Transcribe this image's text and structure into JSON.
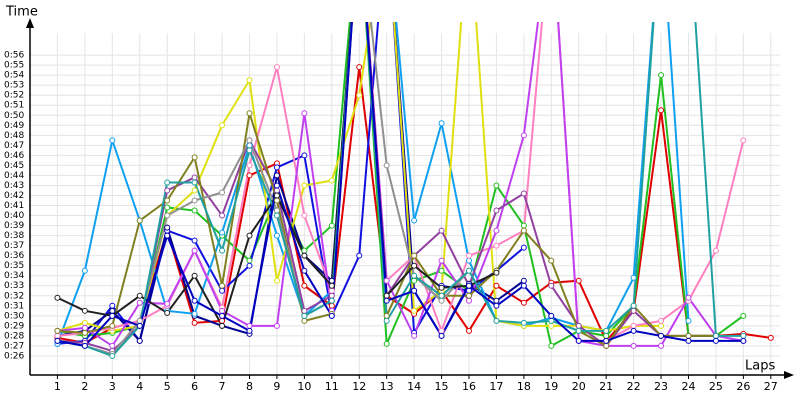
{
  "chart_data": {
    "type": "line",
    "y_label": "Time",
    "x_label": "Laps",
    "x": [
      1,
      2,
      3,
      4,
      5,
      6,
      7,
      8,
      9,
      10,
      11,
      12,
      13,
      14,
      15,
      16,
      17,
      18,
      19,
      20,
      21,
      22,
      23,
      24,
      25,
      26,
      27
    ],
    "xlim": [
      0,
      27.7
    ],
    "xticks": [
      1,
      2,
      3,
      4,
      5,
      6,
      7,
      8,
      9,
      10,
      11,
      12,
      13,
      14,
      15,
      16,
      17,
      18,
      19,
      20,
      21,
      22,
      23,
      24,
      25,
      26,
      27
    ],
    "ylim": [
      24,
      59.2
    ],
    "yticks": [
      {
        "value": 26,
        "label": "0:26"
      },
      {
        "value": 27,
        "label": "0:27"
      },
      {
        "value": 28,
        "label": "0:28"
      },
      {
        "value": 29,
        "label": "0:29"
      },
      {
        "value": 30,
        "label": "0:30"
      },
      {
        "value": 31,
        "label": "0:31"
      },
      {
        "value": 32,
        "label": "0:32"
      },
      {
        "value": 33,
        "label": "0:33"
      },
      {
        "value": 34,
        "label": "0:34"
      },
      {
        "value": 35,
        "label": "0:35"
      },
      {
        "value": 36,
        "label": "0:36"
      },
      {
        "value": 37,
        "label": "0:37"
      },
      {
        "value": 38,
        "label": "0:38"
      },
      {
        "value": 39,
        "label": "0:39"
      },
      {
        "value": 40,
        "label": "0:40"
      },
      {
        "value": 41,
        "label": "0:41"
      },
      {
        "value": 42,
        "label": "0:42"
      },
      {
        "value": 43,
        "label": "0:43"
      },
      {
        "value": 44,
        "label": "0:44"
      },
      {
        "value": 45,
        "label": "0:45"
      },
      {
        "value": 46,
        "label": "0:46"
      },
      {
        "value": 47,
        "label": "0:47"
      },
      {
        "value": 48,
        "label": "0:48"
      },
      {
        "value": 49,
        "label": "0:49"
      },
      {
        "value": 50,
        "label": "0:50"
      },
      {
        "value": 51,
        "label": "0:51"
      },
      {
        "value": 52,
        "label": "0:52"
      },
      {
        "value": 53,
        "label": "0:53"
      },
      {
        "value": 54,
        "label": "0:54"
      },
      {
        "value": 55,
        "label": "0:55"
      },
      {
        "value": 56,
        "label": "0:56"
      }
    ],
    "grid": true,
    "series": [
      {
        "color": "#e00000",
        "values": [
          27.8,
          27.3,
          28.8,
          29.5,
          38.5,
          29.3,
          29.5,
          44,
          45.2,
          33,
          31,
          54.8,
          32,
          30.2,
          32.5,
          28.5,
          33,
          31.3,
          33.3,
          33.5,
          27.5,
          30.5,
          50.5,
          28,
          28,
          28.2,
          27.8
        ]
      },
      {
        "color": "#20c020",
        "values": [
          28.5,
          28,
          28.3,
          29,
          40.8,
          40.5,
          38,
          35.5,
          42,
          36.5,
          39,
          70,
          27.2,
          33.5,
          34.5,
          32.5,
          43,
          39,
          27,
          28.5,
          28,
          31,
          54,
          28,
          28,
          30,
          null
        ]
      },
      {
        "color": "#1010e0",
        "values": [
          27.2,
          27.5,
          31,
          27.5,
          38.5,
          37.5,
          32.5,
          35,
          44.8,
          46,
          30,
          36,
          70,
          28.3,
          33,
          32.5,
          34.5,
          36.8,
          null,
          null,
          null,
          null,
          null,
          null,
          null,
          null,
          null
        ]
      },
      {
        "color": "#000090",
        "values": [
          28,
          28.5,
          30.5,
          27.5,
          38.8,
          30,
          29,
          28.2,
          44,
          36,
          33.5,
          70,
          70,
          32.5,
          28,
          33.2,
          31.5,
          33.5,
          null,
          null,
          null,
          null,
          null,
          null,
          null,
          null,
          null
        ]
      },
      {
        "color": "#10a0f0",
        "values": [
          27.2,
          34.5,
          47.5,
          39.5,
          30.5,
          30.2,
          38.3,
          47,
          38,
          30,
          32.5,
          70,
          70,
          39.5,
          49.2,
          35.5,
          29.5,
          29,
          29.8,
          29,
          28.5,
          33.8,
          70,
          29.5,
          null,
          null,
          null
        ]
      },
      {
        "color": "#e0e010",
        "values": [
          28.5,
          29.3,
          28.5,
          29,
          40,
          42.5,
          49,
          53.5,
          33.5,
          43,
          43.5,
          52,
          70,
          30.5,
          32.5,
          70,
          29.5,
          29,
          29,
          29,
          28.5,
          29,
          29,
          null,
          null,
          null,
          null
        ]
      },
      {
        "color": "#ff80c0",
        "values": [
          28,
          28.3,
          28.8,
          29.5,
          31,
          36.5,
          30.8,
          45,
          54.8,
          40,
          32.5,
          70,
          33.5,
          36,
          28.5,
          36,
          37,
          38.5,
          70,
          27.5,
          27.5,
          29,
          29.5,
          31.5,
          36.5,
          47.5,
          null
        ]
      },
      {
        "color": "#c040f0",
        "values": [
          28.5,
          28.8,
          27,
          31.3,
          31.2,
          36.5,
          30.5,
          29,
          29,
          50.2,
          30.5,
          70,
          33.5,
          28,
          35.5,
          31.5,
          38.5,
          48,
          70,
          27.5,
          27,
          27,
          27,
          31.8,
          28,
          27.5,
          null
        ]
      },
      {
        "color": "#9040a0",
        "values": [
          27.5,
          27.3,
          26.5,
          29,
          42.5,
          43.8,
          40,
          47.5,
          42.5,
          30.5,
          32,
          70,
          32,
          36,
          38.5,
          33,
          40.5,
          42.2,
          33,
          29,
          27,
          30.5,
          28,
          28,
          28,
          null,
          null
        ]
      },
      {
        "color": "#808020",
        "values": [
          28.5,
          28.3,
          29,
          39.5,
          41.5,
          45.8,
          33,
          50.2,
          41.5,
          29.5,
          30.2,
          70,
          30,
          36,
          32,
          32,
          34.5,
          38.5,
          35.5,
          28.5,
          27,
          31,
          28,
          28,
          28,
          null,
          null
        ]
      },
      {
        "color": "#909090",
        "values": [
          27.5,
          27,
          26.2,
          29.5,
          40,
          41.5,
          42.3,
          47.5,
          40.5,
          30,
          31.5,
          70,
          45,
          34,
          31.5,
          34.5,
          null,
          null,
          null,
          null,
          null,
          null,
          null,
          null,
          null,
          null,
          null
        ]
      },
      {
        "color": "#202020",
        "values": [
          31.8,
          30.5,
          30,
          32,
          30.3,
          34,
          29,
          38,
          42,
          36,
          33,
          70,
          32,
          35,
          32.8,
          33,
          34.3,
          null,
          null,
          null,
          null,
          null,
          null,
          null,
          null,
          null,
          null
        ]
      },
      {
        "color": "#20a0a0",
        "values": [
          27.5,
          27,
          26,
          29,
          43.3,
          43.3,
          36.5,
          46.5,
          40,
          30,
          31.5,
          70,
          29.5,
          34,
          32,
          34.5,
          29.5,
          29.3,
          29.5,
          28.5,
          28.5,
          31,
          70,
          70,
          28,
          28,
          null
        ]
      },
      {
        "color": "#0000c0",
        "values": [
          27.5,
          27,
          30,
          29,
          38,
          31.5,
          30,
          28.5,
          43,
          34.5,
          30,
          70,
          31.5,
          32.5,
          28,
          33,
          31,
          33,
          30,
          27.5,
          27.5,
          28.5,
          28,
          27.5,
          27.5,
          27.5,
          null
        ]
      }
    ]
  }
}
